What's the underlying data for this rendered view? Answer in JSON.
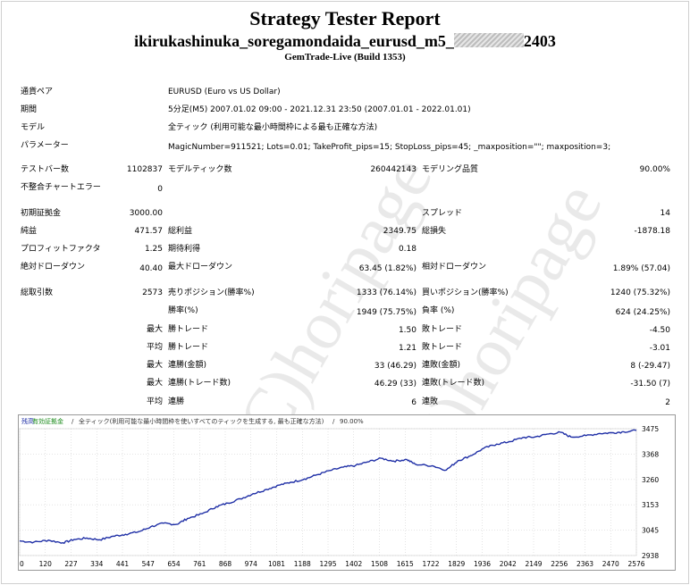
{
  "header": {
    "title": "Strategy Tester Report",
    "subtitle_left": "ikirukashinuka_soregamondaida_eurusd_m5_",
    "subtitle_right": "2403",
    "build": "GemTrade-Live (Build 1353)"
  },
  "info": {
    "symbol_label": "通貨ペア",
    "symbol_value": "EURUSD (Euro vs US Dollar)",
    "period_label": "期間",
    "period_value": "5分足(M5) 2007.01.02 09:00 - 2021.12.31 23:50 (2007.01.01 - 2022.01.01)",
    "model_label": "モデル",
    "model_value": "全ティック (利用可能な最小時間枠による最も正確な方法)",
    "params_label": "パラメーター",
    "params_value": "MagicNumber=911521; Lots=0.01; TakeProfit_pips=15; StopLoss_pips=45; _maxposition=\"\"; maxposition=3;"
  },
  "stats": {
    "bars_label": "テストバー数",
    "bars_value": "1102837",
    "ticks_label": "モデルティック数",
    "ticks_value": "260442143",
    "quality_label": "モデリング品質",
    "quality_value": "90.00%",
    "errors_label": "不整合チャートエラー",
    "errors_value": "0",
    "deposit_label": "初期証拠金",
    "deposit_value": "3000.00",
    "spread_label": "スプレッド",
    "spread_value": "14",
    "net_label": "純益",
    "net_value": "471.57",
    "gross_profit_label": "総利益",
    "gross_profit_value": "2349.75",
    "gross_loss_label": "総損失",
    "gross_loss_value": "-1878.18",
    "pf_label": "プロフィットファクタ",
    "pf_value": "1.25",
    "payoff_label": "期待利得",
    "payoff_value": "0.18",
    "abs_dd_label": "絶対ドローダウン",
    "abs_dd_value": "40.40",
    "max_dd_label": "最大ドローダウン",
    "max_dd_value": "63.45 (1.82%)",
    "rel_dd_label": "相対ドローダウン",
    "rel_dd_value": "1.89% (57.04)",
    "trades_label": "総取引数",
    "trades_value": "2573",
    "short_label": "売りポジション(勝率%)",
    "short_value": "1333 (76.14%)",
    "long_label": "買いポジション(勝率%)",
    "long_value": "1240 (75.32%)",
    "win_pct_label": "勝率(%)",
    "win_pct_value": "1949 (75.75%)",
    "loss_pct_label": "負率 (%)",
    "loss_pct_value": "624 (24.25%)",
    "max_label": "最大",
    "avg_label": "平均",
    "largest_win_label": "勝トレード",
    "largest_win_value": "1.50",
    "largest_loss_label": "敗トレード",
    "largest_loss_value": "-4.50",
    "avg_win_label": "勝トレード",
    "avg_win_value": "1.21",
    "avg_loss_label": "敗トレード",
    "avg_loss_value": "-3.01",
    "max_cons_wins_label": "連勝(金額)",
    "max_cons_wins_value": "33 (46.29)",
    "max_cons_losses_label": "連敗(金額)",
    "max_cons_losses_value": "8 (-29.47)",
    "max_cons_profit_label": "連勝(トレード数)",
    "max_cons_profit_value": "46.29 (33)",
    "max_cons_loss_label": "連敗(トレード数)",
    "max_cons_loss_value": "-31.50 (7)",
    "avg_cons_wins_label": "連勝",
    "avg_cons_wins_value": "6",
    "avg_cons_losses_label": "連敗",
    "avg_cons_losses_value": "2"
  },
  "chart_legend": {
    "balance": "残高",
    "equity": "有効証拠金",
    "model": "全ティック(利用可能な最小時間枠を使いすべてのティックを生成する, 最も正確な方法)",
    "quality": "90.00%",
    "sep": "/"
  },
  "watermark": "(C)horipage",
  "colors": {
    "balance_line": "#1f2fa6",
    "equity_text": "#1a8a1a",
    "grid": "#c8c8c8"
  },
  "chart_data": {
    "type": "line",
    "x_ticks": [
      "0",
      "120",
      "227",
      "334",
      "441",
      "547",
      "654",
      "761",
      "868",
      "974",
      "1081",
      "1188",
      "1295",
      "1402",
      "1508",
      "1615",
      "1722",
      "1829",
      "1936",
      "2042",
      "2149",
      "2256",
      "2363",
      "2470",
      "2576"
    ],
    "y_ticks": [
      "3475",
      "3368",
      "3260",
      "3153",
      "3045",
      "2938"
    ],
    "ylim": [
      2938,
      3475
    ],
    "xlim": [
      0,
      2573
    ],
    "series": [
      {
        "name": "残高",
        "x": [
          0,
          60,
          120,
          180,
          227,
          280,
          334,
          390,
          441,
          500,
          547,
          600,
          654,
          700,
          761,
          820,
          868,
          920,
          974,
          1030,
          1081,
          1130,
          1188,
          1240,
          1295,
          1350,
          1402,
          1450,
          1508,
          1560,
          1615,
          1650,
          1722,
          1780,
          1829,
          1880,
          1936,
          1990,
          2042,
          2100,
          2149,
          2200,
          2256,
          2300,
          2363,
          2420,
          2470,
          2520,
          2573
        ],
        "y": [
          3000,
          2995,
          3003,
          2992,
          3006,
          3012,
          3005,
          3020,
          3028,
          3040,
          3060,
          3075,
          3070,
          3095,
          3115,
          3145,
          3160,
          3178,
          3200,
          3218,
          3236,
          3248,
          3262,
          3280,
          3298,
          3312,
          3320,
          3334,
          3350,
          3338,
          3345,
          3325,
          3318,
          3300,
          3340,
          3360,
          3392,
          3410,
          3420,
          3438,
          3440,
          3452,
          3460,
          3440,
          3446,
          3455,
          3458,
          3462,
          3468
        ]
      }
    ]
  }
}
